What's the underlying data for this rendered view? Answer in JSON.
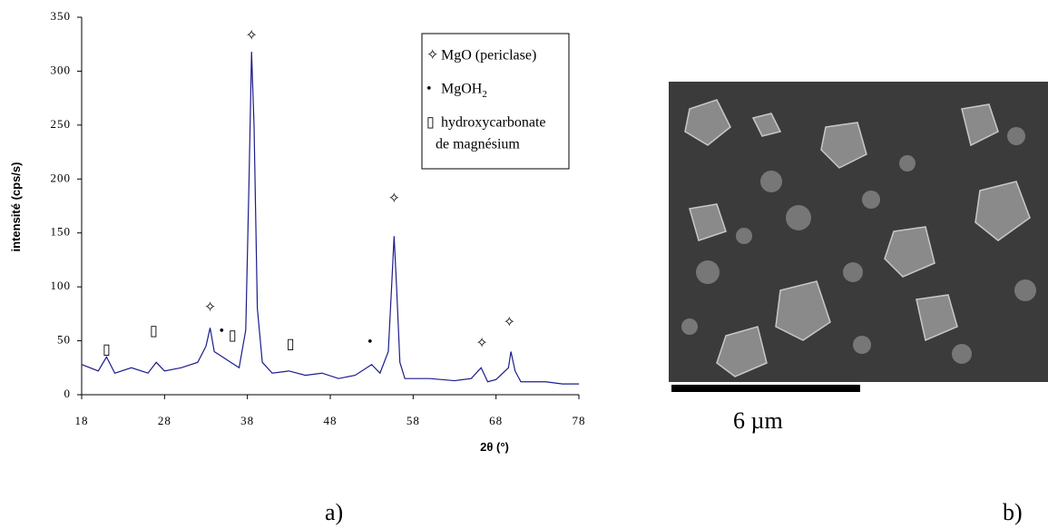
{
  "chart_data": {
    "type": "line",
    "xlabel": "2θ (°)",
    "ylabel": "intensité (cps/s)",
    "xlim": [
      18,
      78
    ],
    "xticks": [
      18,
      28,
      38,
      48,
      58,
      68,
      78
    ],
    "ylim": [
      0,
      350
    ],
    "yticks": [
      0,
      50,
      100,
      150,
      200,
      250,
      300,
      350
    ],
    "series": [
      {
        "color": "#1c1c8c",
        "x": [
          18,
          20,
          21,
          22,
          24,
          26,
          27,
          28,
          30,
          32,
          33,
          33.5,
          34,
          35,
          36,
          37,
          37.8,
          38.2,
          38.5,
          38.8,
          39.2,
          39.8,
          41,
          43,
          45,
          47,
          49,
          51,
          53,
          54,
          55,
          55.4,
          55.7,
          56,
          56.4,
          57,
          60,
          63,
          65,
          66.2,
          67,
          68,
          69.5,
          69.8,
          70.3,
          71,
          74,
          76,
          78
        ],
        "values": [
          28,
          22,
          35,
          20,
          25,
          20,
          30,
          22,
          25,
          30,
          45,
          62,
          40,
          35,
          30,
          25,
          60,
          200,
          318,
          250,
          80,
          30,
          20,
          22,
          18,
          20,
          15,
          18,
          28,
          20,
          40,
          100,
          147,
          100,
          30,
          15,
          15,
          13,
          15,
          25,
          12,
          14,
          25,
          40,
          22,
          12,
          12,
          10,
          10
        ]
      }
    ],
    "annotations": [
      {
        "symbol": "✧",
        "x": 33.5,
        "y": 80
      },
      {
        "symbol": "✧",
        "x": 38.5,
        "y": 332
      },
      {
        "symbol": "✧",
        "x": 55.7,
        "y": 181
      },
      {
        "symbol": "✧",
        "x": 66.3,
        "y": 47
      },
      {
        "symbol": "✧",
        "x": 69.6,
        "y": 66
      },
      {
        "symbol": "•",
        "x": 34.9,
        "y": 58
      },
      {
        "symbol": "•",
        "x": 52.8,
        "y": 48
      },
      {
        "symbol": "▯",
        "x": 21,
        "y": 41
      },
      {
        "symbol": "▯",
        "x": 26.7,
        "y": 58
      },
      {
        "symbol": "▯",
        "x": 36.2,
        "y": 54
      },
      {
        "symbol": "▯",
        "x": 43.2,
        "y": 46
      }
    ],
    "legend": [
      {
        "symbol": "✧",
        "text": "MgO (periclase)"
      },
      {
        "symbol": "•",
        "text": "MgOH",
        "sub": "2"
      },
      {
        "symbol": "▯",
        "text": "hydroxycarbonate",
        "text2": "de magnésium"
      }
    ],
    "image_scale": "6 µm",
    "captions": [
      "a)",
      "b)"
    ]
  }
}
